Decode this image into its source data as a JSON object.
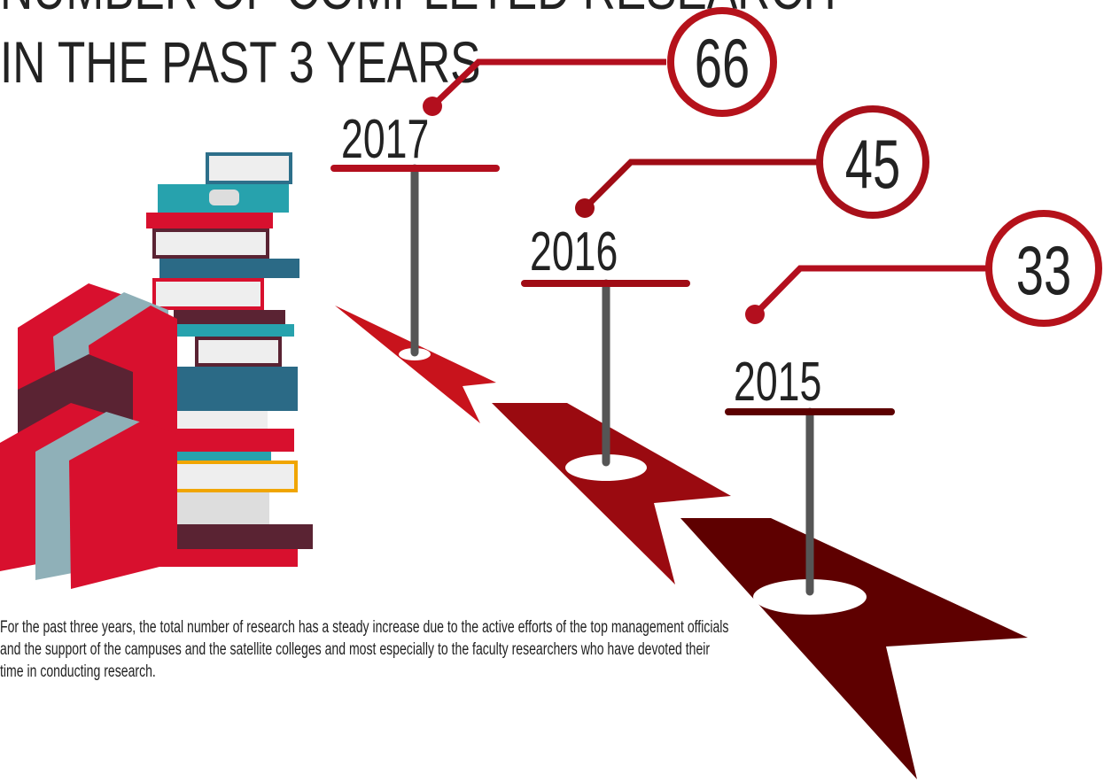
{
  "header": {
    "title_lines": [
      "NUMBER OF COMPLETED RESEARCH",
      "IN THE PAST 3 YEARS"
    ]
  },
  "milestones": [
    {
      "year": "2017",
      "count": "66"
    },
    {
      "year": "2016",
      "count": "45"
    },
    {
      "year": "2015",
      "count": "33"
    }
  ],
  "description": "For the past three years, the total number of research has a steady increase due to the active efforts of the top management officials and the support of the campuses and the satellite colleges and most especially to the faculty researchers who have devoted their time in conducting research."
}
